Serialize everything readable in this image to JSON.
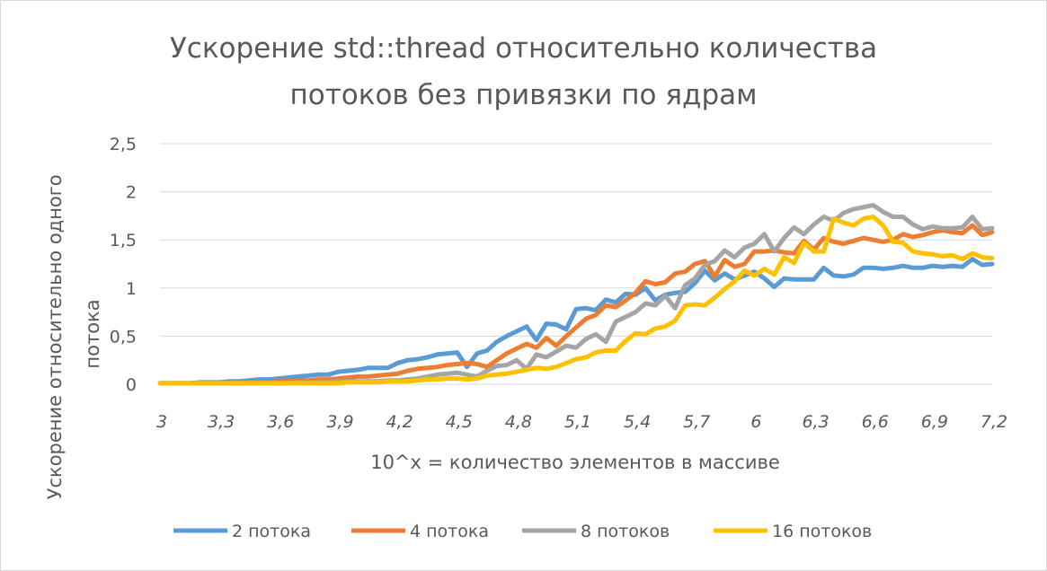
{
  "colors": {
    "s2": "#5b9bd5",
    "s4": "#ed7d31",
    "s8": "#a5a5a5",
    "s16": "#ffc000",
    "grid": "#d9d9d9",
    "text": "#595959"
  },
  "chart_data": {
    "type": "line",
    "title_line1": "Ускорение std::thread относительно количества",
    "title_line2": "потоков без привязки по ядрам",
    "xlabel": "10^x = количество элементов в массиве",
    "ylabel": "Ускорение относительно одного потока",
    "ylim": [
      0,
      2.5
    ],
    "yticks": [
      "0",
      "0,5",
      "1",
      "1,5",
      "2",
      "2,5"
    ],
    "xlim": [
      3,
      7.2
    ],
    "xticks": [
      "3",
      "3,3",
      "3,6",
      "3,9",
      "4,2",
      "4,5",
      "4,8",
      "5,1",
      "5,4",
      "5,7",
      "6",
      "6,3",
      "6,6",
      "6,9",
      "7,2"
    ],
    "grid": true,
    "legend_position": "bottom",
    "x": [
      3.0,
      3.05,
      3.1,
      3.15,
      3.2,
      3.25,
      3.3,
      3.35,
      3.4,
      3.45,
      3.5,
      3.55,
      3.6,
      3.65,
      3.7,
      3.75,
      3.8,
      3.85,
      3.9,
      3.95,
      4.0,
      4.05,
      4.1,
      4.15,
      4.2,
      4.25,
      4.3,
      4.35,
      4.4,
      4.45,
      4.5,
      4.55,
      4.6,
      4.65,
      4.7,
      4.75,
      4.8,
      4.85,
      4.9,
      4.95,
      5.0,
      5.05,
      5.1,
      5.15,
      5.2,
      5.25,
      5.3,
      5.35,
      5.4,
      5.45,
      5.5,
      5.55,
      5.6,
      5.65,
      5.7,
      5.75,
      5.8,
      5.85,
      5.9,
      5.95,
      6.0,
      6.05,
      6.1,
      6.15,
      6.2,
      6.25,
      6.3,
      6.35,
      6.4,
      6.45,
      6.5,
      6.55,
      6.6,
      6.65,
      6.7,
      6.75,
      6.8,
      6.85,
      6.9,
      6.95,
      7.0,
      7.05,
      7.1,
      7.15,
      7.2
    ],
    "series": [
      {
        "name": "2 потока",
        "values": [
          0.01,
          0.01,
          0.01,
          0.01,
          0.02,
          0.02,
          0.02,
          0.03,
          0.03,
          0.04,
          0.05,
          0.05,
          0.06,
          0.07,
          0.08,
          0.09,
          0.1,
          0.1,
          0.13,
          0.14,
          0.15,
          0.17,
          0.17,
          0.17,
          0.22,
          0.25,
          0.26,
          0.28,
          0.31,
          0.32,
          0.33,
          0.18,
          0.32,
          0.35,
          0.44,
          0.5,
          0.55,
          0.6,
          0.46,
          0.63,
          0.62,
          0.57,
          0.78,
          0.79,
          0.77,
          0.88,
          0.85,
          0.94,
          0.93,
          1.0,
          0.87,
          0.93,
          0.95,
          0.96,
          1.05,
          1.18,
          1.08,
          1.15,
          1.09,
          1.13,
          1.17,
          1.1,
          1.01,
          1.1,
          1.09,
          1.09,
          1.09,
          1.21,
          1.13,
          1.12,
          1.14,
          1.21,
          1.21,
          1.2,
          1.21,
          1.23,
          1.21,
          1.21,
          1.23,
          1.22,
          1.23,
          1.22,
          1.3,
          1.24,
          1.25
        ]
      },
      {
        "name": "4 потока",
        "values": [
          0.01,
          0.01,
          0.01,
          0.01,
          0.01,
          0.01,
          0.01,
          0.01,
          0.02,
          0.02,
          0.02,
          0.02,
          0.03,
          0.03,
          0.04,
          0.04,
          0.05,
          0.05,
          0.06,
          0.07,
          0.08,
          0.08,
          0.09,
          0.1,
          0.11,
          0.14,
          0.16,
          0.17,
          0.18,
          0.2,
          0.21,
          0.22,
          0.21,
          0.18,
          0.25,
          0.32,
          0.37,
          0.42,
          0.38,
          0.48,
          0.4,
          0.5,
          0.59,
          0.68,
          0.72,
          0.82,
          0.8,
          0.87,
          0.95,
          1.07,
          1.04,
          1.06,
          1.15,
          1.17,
          1.25,
          1.28,
          1.12,
          1.29,
          1.22,
          1.25,
          1.38,
          1.38,
          1.39,
          1.37,
          1.36,
          1.49,
          1.4,
          1.52,
          1.48,
          1.46,
          1.49,
          1.52,
          1.5,
          1.48,
          1.5,
          1.56,
          1.53,
          1.55,
          1.58,
          1.6,
          1.58,
          1.57,
          1.65,
          1.55,
          1.58
        ]
      },
      {
        "name": "8 потоков",
        "values": [
          0.01,
          0.01,
          0.01,
          0.01,
          0.01,
          0.01,
          0.01,
          0.01,
          0.01,
          0.01,
          0.01,
          0.01,
          0.01,
          0.01,
          0.02,
          0.02,
          0.02,
          0.02,
          0.03,
          0.03,
          0.03,
          0.03,
          0.03,
          0.04,
          0.04,
          0.05,
          0.06,
          0.08,
          0.1,
          0.11,
          0.12,
          0.1,
          0.08,
          0.14,
          0.19,
          0.2,
          0.25,
          0.16,
          0.31,
          0.28,
          0.34,
          0.4,
          0.38,
          0.47,
          0.52,
          0.44,
          0.65,
          0.7,
          0.75,
          0.84,
          0.82,
          0.92,
          0.79,
          1.03,
          1.1,
          1.24,
          1.28,
          1.39,
          1.32,
          1.42,
          1.46,
          1.56,
          1.38,
          1.52,
          1.63,
          1.56,
          1.66,
          1.74,
          1.7,
          1.78,
          1.82,
          1.84,
          1.86,
          1.79,
          1.74,
          1.74,
          1.66,
          1.61,
          1.64,
          1.62,
          1.62,
          1.63,
          1.74,
          1.61,
          1.62
        ]
      },
      {
        "name": "16 потоков",
        "values": [
          0.01,
          0.01,
          0.01,
          0.01,
          0.01,
          0.01,
          0.01,
          0.01,
          0.01,
          0.01,
          0.01,
          0.01,
          0.01,
          0.01,
          0.01,
          0.01,
          0.01,
          0.01,
          0.01,
          0.02,
          0.02,
          0.02,
          0.02,
          0.03,
          0.03,
          0.03,
          0.04,
          0.05,
          0.05,
          0.06,
          0.06,
          0.05,
          0.06,
          0.09,
          0.1,
          0.11,
          0.13,
          0.15,
          0.17,
          0.16,
          0.18,
          0.22,
          0.26,
          0.28,
          0.33,
          0.35,
          0.35,
          0.45,
          0.53,
          0.52,
          0.58,
          0.6,
          0.66,
          0.82,
          0.83,
          0.82,
          0.9,
          0.99,
          1.07,
          1.18,
          1.13,
          1.2,
          1.14,
          1.32,
          1.26,
          1.47,
          1.38,
          1.38,
          1.72,
          1.68,
          1.65,
          1.72,
          1.74,
          1.65,
          1.48,
          1.47,
          1.38,
          1.36,
          1.35,
          1.33,
          1.34,
          1.3,
          1.36,
          1.32,
          1.31
        ]
      }
    ]
  }
}
